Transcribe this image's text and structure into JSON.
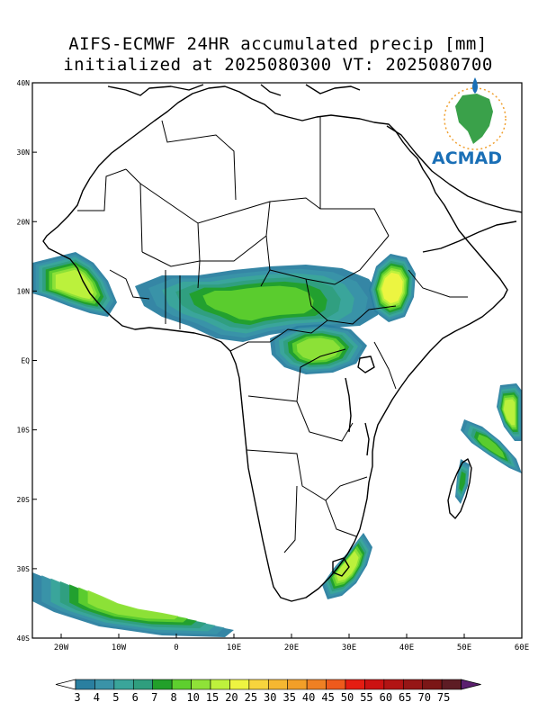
{
  "title": {
    "line1": "AIFS-ECMWF 24HR accumulated precip [mm]",
    "line2": "initialized at 2025080300 VT: 2025080700"
  },
  "map": {
    "region": "Africa",
    "projection": "lat-lon",
    "lon_range": [
      -25,
      60
    ],
    "lat_range": [
      -40,
      40
    ],
    "lat_ticks": [
      {
        "value": 40,
        "label": "40N"
      },
      {
        "value": 30,
        "label": "30N"
      },
      {
        "value": 20,
        "label": "20N"
      },
      {
        "value": 10,
        "label": "10N"
      },
      {
        "value": 0,
        "label": "EQ"
      },
      {
        "value": -10,
        "label": "10S"
      },
      {
        "value": -20,
        "label": "20S"
      },
      {
        "value": -30,
        "label": "30S"
      },
      {
        "value": -40,
        "label": "40S"
      }
    ],
    "lon_ticks": [
      {
        "value": -20,
        "label": "20W"
      },
      {
        "value": -10,
        "label": "10W"
      },
      {
        "value": 0,
        "label": "0"
      },
      {
        "value": 10,
        "label": "10E"
      },
      {
        "value": 20,
        "label": "20E"
      },
      {
        "value": 30,
        "label": "30E"
      },
      {
        "value": 40,
        "label": "40E"
      },
      {
        "value": 50,
        "label": "50E"
      },
      {
        "value": 60,
        "label": "60E"
      }
    ],
    "precip_regions": [
      {
        "name": "sahel-rain-belt",
        "level": 5
      },
      {
        "name": "west-atlantic-band",
        "level": 7
      },
      {
        "name": "ethiopian-highlands",
        "level": 8
      },
      {
        "name": "congo-basin",
        "level": 6
      },
      {
        "name": "southwest-storm-band",
        "level": 6
      },
      {
        "name": "south-africa-east-coast",
        "level": 7
      },
      {
        "name": "madagascar-east",
        "level": 4
      },
      {
        "name": "mascarene-band",
        "level": 5
      },
      {
        "name": "east-indian-ocean",
        "level": 7
      }
    ]
  },
  "logo": {
    "text": "ACMAD"
  },
  "colorbar": {
    "labels": [
      "3",
      "4",
      "5",
      "6",
      "7",
      "8",
      "10",
      "15",
      "20",
      "25",
      "30",
      "35",
      "40",
      "45",
      "50",
      "55",
      "60",
      "65",
      "70",
      "75"
    ],
    "colors": [
      "#2a7fa0",
      "#3a93a8",
      "#3aa59a",
      "#2f9e7e",
      "#22a02a",
      "#5ecf2e",
      "#8fe238",
      "#bef13c",
      "#eef441",
      "#f8d43d",
      "#f5b731",
      "#f29f28",
      "#ef8023",
      "#ee5a1c",
      "#e51d12",
      "#cc1212",
      "#b21414",
      "#961616",
      "#7b1616",
      "#5d1c24",
      "#5b1f6f"
    ],
    "under_color": "#ffffff"
  }
}
